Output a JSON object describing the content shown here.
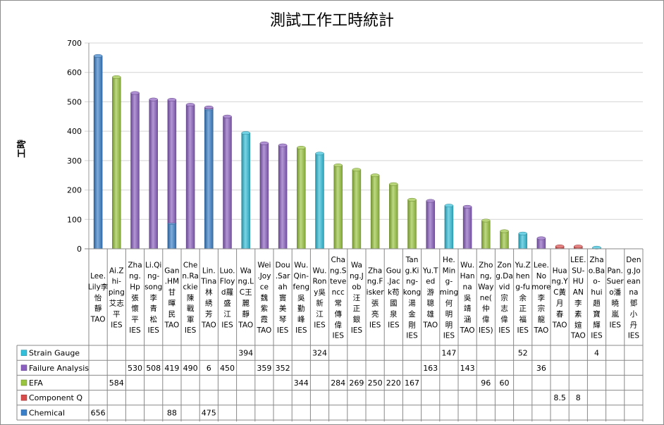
{
  "chart_data": {
    "type": "bar",
    "title": "測試工作工時統計",
    "ylabel": "工時",
    "xlabel": "",
    "ylim": [
      0,
      700
    ],
    "yticks": [
      0,
      100,
      200,
      300,
      400,
      500,
      600,
      700
    ],
    "stacked": true,
    "grid": true,
    "legend_position": "table-left",
    "categories": [
      [
        "Lee.",
        "Lily李",
        "怡",
        "靜",
        "TAO"
      ],
      [
        "Ai.Z",
        "hi-",
        "ping",
        "艾志",
        "平",
        "IES"
      ],
      [
        "Zha",
        "ng.",
        "Hp",
        "張",
        "懷",
        "平",
        "IES"
      ],
      [
        "Li.Qi",
        "ng-",
        "song",
        "李",
        "青",
        "松",
        "IES"
      ],
      [
        "Gan",
        ".HM",
        "甘",
        "暉",
        "民",
        "TAO"
      ],
      [
        "Che",
        "n.Ra",
        "ckie",
        "陳",
        "戰",
        "軍",
        "IES"
      ],
      [
        "Lin.",
        "Tina",
        "林",
        "綉",
        "芳",
        "TAO"
      ],
      [
        "Luo.",
        "Floy",
        "d羅",
        "盛",
        "江",
        "IES"
      ],
      [
        "Wa",
        "ng.L",
        "C王",
        "麗",
        "靜",
        "TAO"
      ],
      [
        "Wei",
        ".Joy",
        "ce",
        "魏",
        "紫",
        "霞",
        "TAO"
      ],
      [
        "Dou",
        ".Sar",
        "ah",
        "竇",
        "美",
        "琴",
        "IES"
      ],
      [
        "Wu.",
        "Qin-",
        "feng",
        "吳",
        "勤",
        "峰",
        "IES"
      ],
      [
        "Wu.",
        "Ron",
        "y吳",
        "新",
        "江",
        "IES"
      ],
      [
        "Cha",
        "ng.S",
        "teve",
        "ncc",
        "常",
        "傳",
        "偉",
        "IES"
      ],
      [
        "Wa",
        "ng.J",
        "ob",
        "汪",
        "正",
        "銀",
        "IES"
      ],
      [
        "Zha",
        "ng.F",
        "isker",
        "張",
        "亮",
        "IES"
      ],
      [
        "Gou",
        ".Jac",
        "k苟",
        "國",
        "泉",
        "IES"
      ],
      [
        "Tan",
        "g.Ki",
        "ng-",
        "kong",
        "湯",
        "金",
        "剛",
        "IES"
      ],
      [
        "Yu.T",
        "ed",
        "游",
        "聰",
        "雄",
        "TAO"
      ],
      [
        "He.",
        "Min",
        "g-",
        "ming",
        "何",
        "明",
        "明",
        "IES"
      ],
      [
        "Wu.",
        "Han",
        "na",
        "吳",
        "靖",
        "涵",
        "TAO"
      ],
      [
        "Zho",
        "ng,",
        "Way",
        "ne(",
        "仲",
        "偉",
        "IES)"
      ],
      [
        "Zon",
        "g.Da",
        "vid",
        "宗",
        "志",
        "偉",
        "IES"
      ],
      [
        "Yu.Z",
        "hen",
        "g-fu",
        "余",
        "正",
        "福",
        "IES"
      ],
      [
        "Lee.",
        "No",
        "more",
        "李",
        "宗",
        "龍",
        "TAO"
      ],
      [
        "Hua",
        "ng.Y",
        "C黃",
        "月",
        "春",
        "TAO"
      ],
      [
        "LEE.",
        "SU-",
        "HU",
        "AN",
        "李",
        "素",
        "媗",
        "TAO"
      ],
      [
        "Zha",
        "o.Ba",
        "o-",
        "hui",
        "趙",
        "寶",
        "輝",
        "IES"
      ],
      [
        "Pan.",
        "Suer",
        "o潘",
        "曉",
        "嵐",
        "IES"
      ],
      [
        "Den",
        "g.Jo",
        "ean",
        "na",
        "鄧",
        "小",
        "丹",
        "IES"
      ]
    ],
    "series": [
      {
        "name": "Strain Gauge",
        "color": "#33bfd9",
        "values": [
          null,
          null,
          null,
          null,
          null,
          null,
          null,
          null,
          394,
          null,
          null,
          null,
          324,
          null,
          null,
          null,
          null,
          null,
          null,
          147,
          null,
          null,
          null,
          52,
          null,
          null,
          null,
          4,
          null,
          null
        ]
      },
      {
        "name": "Failure Analysis",
        "color": "#8a5fbf",
        "values": [
          null,
          null,
          530,
          508,
          419,
          490,
          6,
          450,
          null,
          359,
          352,
          null,
          null,
          null,
          null,
          null,
          null,
          null,
          163,
          null,
          143,
          null,
          null,
          null,
          36,
          null,
          null,
          null,
          null,
          null
        ]
      },
      {
        "name": "EFA",
        "color": "#99c43f",
        "values": [
          null,
          584,
          null,
          null,
          null,
          null,
          null,
          null,
          null,
          null,
          null,
          344,
          null,
          284,
          269,
          250,
          220,
          167,
          null,
          null,
          null,
          96,
          60,
          null,
          null,
          null,
          null,
          null,
          null,
          null
        ]
      },
      {
        "name": "Component Q",
        "color": "#d84c4c",
        "values": [
          null,
          null,
          null,
          null,
          null,
          null,
          null,
          null,
          null,
          null,
          null,
          null,
          null,
          null,
          null,
          null,
          null,
          null,
          null,
          null,
          null,
          null,
          null,
          null,
          null,
          8.5,
          8,
          null,
          null,
          null
        ]
      },
      {
        "name": "Chemical",
        "color": "#3a80c9",
        "values": [
          656,
          null,
          null,
          null,
          88,
          null,
          475,
          null,
          null,
          null,
          null,
          null,
          null,
          null,
          null,
          null,
          null,
          null,
          null,
          null,
          null,
          null,
          null,
          null,
          null,
          null,
          null,
          null,
          null,
          null
        ]
      }
    ],
    "stack_order": [
      "Chemical",
      "Component Q",
      "EFA",
      "Failure Analysis",
      "Strain Gauge"
    ],
    "table_order": [
      "Strain Gauge",
      "Failure Analysis",
      "EFA",
      "Component Q",
      "Chemical"
    ]
  }
}
